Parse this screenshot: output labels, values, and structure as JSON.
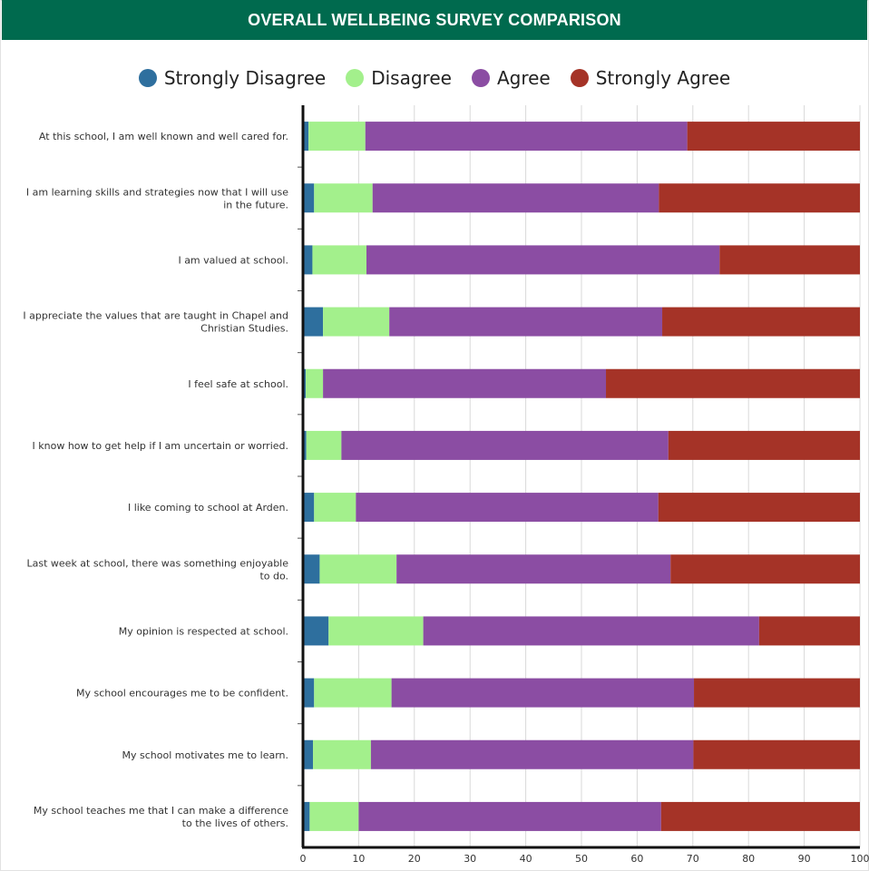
{
  "header": {
    "title": "OVERALL WELLBEING SURVEY COMPARISON"
  },
  "chart_data": {
    "type": "bar",
    "orientation": "horizontal",
    "stacked": true,
    "title": "OVERALL WELLBEING SURVEY COMPARISON",
    "xlabel": "",
    "ylabel": "",
    "xlim": [
      0,
      100
    ],
    "xticks": [
      0,
      10,
      20,
      30,
      40,
      50,
      60,
      70,
      80,
      90,
      100
    ],
    "grid": "vertical",
    "legend_position": "top",
    "categories": [
      [
        "At this school, I am well known and well cared for."
      ],
      [
        "I am learning skills and strategies now that I will use",
        "in the future."
      ],
      [
        "I am valued at school."
      ],
      [
        "I appreciate the values that are taught in Chapel and",
        "Christian Studies."
      ],
      [
        "I feel safe at school."
      ],
      [
        "I know how to get help if I am uncertain or worried."
      ],
      [
        "I like coming to school at Arden."
      ],
      [
        "Last week at school, there was something enjoyable",
        "to do."
      ],
      [
        "My opinion is respected at school."
      ],
      [
        "My school encourages me to be confident."
      ],
      [
        "My school motivates me to learn."
      ],
      [
        "My school teaches me that I can make a difference",
        "to the lives of others."
      ]
    ],
    "series": [
      {
        "name": "Strongly Disagree",
        "color": "#2e6f9e",
        "values": [
          1,
          2,
          1.7,
          3.6,
          0.5,
          0.6,
          2,
          3,
          4.6,
          2,
          1.8,
          1.2
        ]
      },
      {
        "name": "Disagree",
        "color": "#a3f08c",
        "values": [
          10.2,
          10.5,
          9.7,
          11.9,
          3.1,
          6.3,
          7.5,
          13.8,
          17,
          13.9,
          10.4,
          8.8
        ]
      },
      {
        "name": "Agree",
        "color": "#8b4da3",
        "values": [
          57.8,
          51.4,
          63.4,
          49,
          50.8,
          58.7,
          54.3,
          49.2,
          60.3,
          54.3,
          57.9,
          54.3
        ]
      },
      {
        "name": "Strongly Agree",
        "color": "#a53327",
        "values": [
          31,
          36.1,
          25.2,
          35.5,
          45.6,
          34.4,
          36.2,
          34,
          18.1,
          29.8,
          29.9,
          35.7
        ]
      }
    ]
  }
}
